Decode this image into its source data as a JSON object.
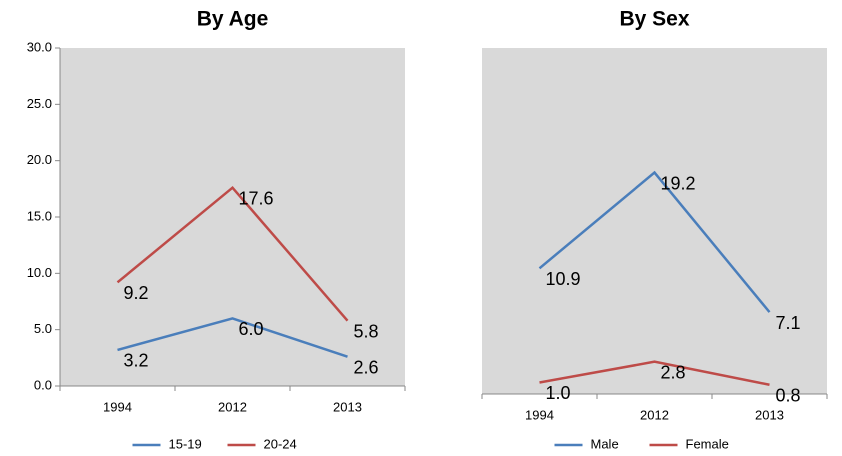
{
  "chart_data": [
    {
      "type": "line",
      "title": "By Age",
      "categories": [
        "1994",
        "2012",
        "2013"
      ],
      "series": [
        {
          "name": "15-19",
          "color": "#4a7ebb",
          "values": [
            3.2,
            6.0,
            2.6
          ],
          "value_labels": [
            "3.2",
            "6.0",
            "2.6"
          ]
        },
        {
          "name": "20-24",
          "color": "#be4b48",
          "values": [
            9.2,
            17.6,
            5.8
          ],
          "value_labels": [
            "9.2",
            "17.6",
            "5.8"
          ]
        }
      ],
      "ylim": [
        0,
        30
      ],
      "yticks": [
        {
          "value": 0,
          "label": "0.0"
        },
        {
          "value": 5,
          "label": "5.0"
        },
        {
          "value": 10,
          "label": "10.0"
        },
        {
          "value": 15,
          "label": "15.0"
        },
        {
          "value": 20,
          "label": "20.0"
        },
        {
          "value": 25,
          "label": "25.0"
        },
        {
          "value": 30,
          "label": "30.0"
        }
      ],
      "legend": "bottom"
    },
    {
      "type": "line",
      "title": "By Sex",
      "categories": [
        "1994",
        "2012",
        "2013"
      ],
      "series": [
        {
          "name": "Male",
          "color": "#4a7ebb",
          "values": [
            10.9,
            19.2,
            7.1
          ],
          "value_labels": [
            "10.9",
            "19.2",
            "7.1"
          ]
        },
        {
          "name": "Female",
          "color": "#be4b48",
          "values": [
            1.0,
            2.8,
            0.8
          ],
          "value_labels": [
            "1.0",
            "2.8",
            "0.8"
          ]
        }
      ],
      "ylim": [
        0,
        30
      ],
      "legend": "bottom"
    }
  ]
}
